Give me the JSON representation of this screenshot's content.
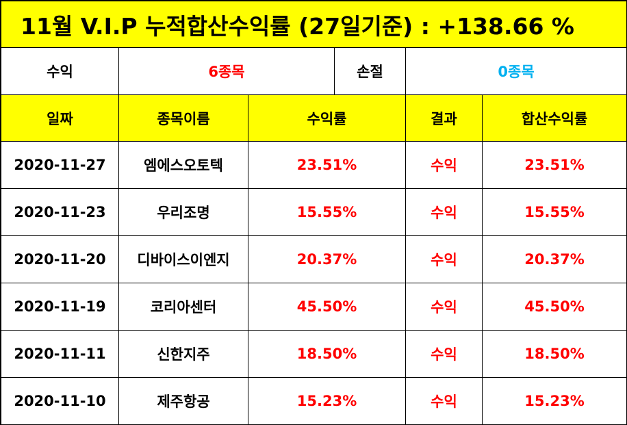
{
  "title": "11월 V.I.P 누적합산수익률 (27일기준) : +138.66 %",
  "summary": {
    "profit_label": "수익",
    "profit_count": "6종목",
    "loss_label": "손절",
    "loss_count": "0종목"
  },
  "headers": [
    "일짜",
    "종목이름",
    "수익률",
    "결과",
    "합산수익률"
  ],
  "rows": [
    {
      "date": "2020-11-27",
      "name": "엠에스오토텍",
      "rate": "23.51%",
      "result": "수익",
      "total": "23.51%"
    },
    {
      "date": "2020-11-23",
      "name": "우리조명",
      "rate": "15.55%",
      "result": "수익",
      "total": "15.55%"
    },
    {
      "date": "2020-11-20",
      "name": "디바이스이엔지",
      "rate": "20.37%",
      "result": "수익",
      "total": "20.37%"
    },
    {
      "date": "2020-11-19",
      "name": "코리아센터",
      "rate": "45.50%",
      "result": "수익",
      "total": "45.50%"
    },
    {
      "date": "2020-11-11",
      "name": "신한지주",
      "rate": "18.50%",
      "result": "수익",
      "total": "18.50%"
    },
    {
      "date": "2020-11-10",
      "name": "제주항공",
      "rate": "15.23%",
      "result": "수익",
      "total": "15.23%"
    }
  ],
  "colors": {
    "highlight": "#ffff00",
    "profit": "#ff0000",
    "loss": "#00b0f0"
  }
}
